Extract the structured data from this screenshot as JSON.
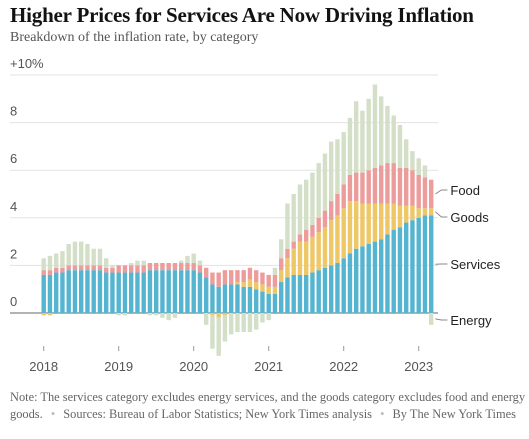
{
  "header": {
    "title": "Higher Prices for Services Are Now Driving Inflation",
    "subtitle": "Breakdown of the inflation rate, by category"
  },
  "chart_data": {
    "type": "bar",
    "stacked": true,
    "x_start": "2018-01",
    "x": [
      "Jan 2018",
      "Feb 2018",
      "Mar 2018",
      "Apr 2018",
      "May 2018",
      "Jun 2018",
      "Jul 2018",
      "Aug 2018",
      "Sep 2018",
      "Oct 2018",
      "Nov 2018",
      "Dec 2018",
      "Jan 2019",
      "Feb 2019",
      "Mar 2019",
      "Apr 2019",
      "May 2019",
      "Jun 2019",
      "Jul 2019",
      "Aug 2019",
      "Sep 2019",
      "Oct 2019",
      "Nov 2019",
      "Dec 2019",
      "Jan 2020",
      "Feb 2020",
      "Mar 2020",
      "Apr 2020",
      "May 2020",
      "Jun 2020",
      "Jul 2020",
      "Aug 2020",
      "Sep 2020",
      "Oct 2020",
      "Nov 2020",
      "Dec 2020",
      "Jan 2021",
      "Feb 2021",
      "Mar 2021",
      "Apr 2021",
      "May 2021",
      "Jun 2021",
      "Jul 2021",
      "Aug 2021",
      "Sep 2021",
      "Oct 2021",
      "Nov 2021",
      "Dec 2021",
      "Jan 2022",
      "Feb 2022",
      "Mar 2022",
      "Apr 2022",
      "May 2022",
      "Jun 2022",
      "Jul 2022",
      "Aug 2022",
      "Sep 2022",
      "Oct 2022",
      "Nov 2022",
      "Dec 2022",
      "Jan 2023",
      "Feb 2023",
      "Mar 2023"
    ],
    "series": [
      {
        "name": "Services",
        "color": "#55b4d0",
        "values": [
          1.6,
          1.6,
          1.7,
          1.7,
          1.8,
          1.8,
          1.8,
          1.8,
          1.8,
          1.8,
          1.7,
          1.7,
          1.7,
          1.7,
          1.7,
          1.7,
          1.7,
          1.8,
          1.8,
          1.8,
          1.8,
          1.8,
          1.8,
          1.8,
          1.8,
          1.7,
          1.5,
          1.2,
          1.1,
          1.2,
          1.2,
          1.2,
          1.1,
          1.1,
          1.0,
          0.9,
          0.8,
          0.8,
          1.3,
          1.5,
          1.6,
          1.6,
          1.6,
          1.7,
          1.8,
          1.9,
          2.0,
          2.1,
          2.3,
          2.5,
          2.7,
          2.8,
          2.9,
          3.0,
          3.1,
          3.3,
          3.5,
          3.6,
          3.8,
          3.9,
          4.0,
          4.1,
          4.1
        ]
      },
      {
        "name": "Goods",
        "color": "#eec767",
        "values": [
          -0.1,
          -0.1,
          0.0,
          0.0,
          0.0,
          0.0,
          0.0,
          0.0,
          0.0,
          0.0,
          0.0,
          0.0,
          0.0,
          0.0,
          0.0,
          0.0,
          0.0,
          0.0,
          0.0,
          0.0,
          0.0,
          0.0,
          0.0,
          0.0,
          0.0,
          0.0,
          0.0,
          -0.1,
          -0.2,
          -0.1,
          0.0,
          0.1,
          0.2,
          0.3,
          0.3,
          0.3,
          0.3,
          0.3,
          0.5,
          0.8,
          1.1,
          1.4,
          1.4,
          1.5,
          1.6,
          1.7,
          1.9,
          2.0,
          2.1,
          2.2,
          2.0,
          1.8,
          1.7,
          1.6,
          1.5,
          1.3,
          1.1,
          0.9,
          0.7,
          0.6,
          0.4,
          0.3,
          0.3
        ]
      },
      {
        "name": "Food",
        "color": "#ec9d9b",
        "values": [
          0.2,
          0.2,
          0.2,
          0.2,
          0.2,
          0.2,
          0.2,
          0.2,
          0.2,
          0.2,
          0.2,
          0.2,
          0.3,
          0.3,
          0.3,
          0.3,
          0.3,
          0.3,
          0.3,
          0.3,
          0.3,
          0.3,
          0.3,
          0.3,
          0.3,
          0.3,
          0.4,
          0.5,
          0.6,
          0.6,
          0.6,
          0.5,
          0.5,
          0.5,
          0.5,
          0.5,
          0.5,
          0.5,
          0.5,
          0.4,
          0.3,
          0.3,
          0.5,
          0.5,
          0.6,
          0.7,
          0.8,
          0.9,
          1.0,
          1.1,
          1.2,
          1.3,
          1.4,
          1.5,
          1.6,
          1.7,
          1.7,
          1.6,
          1.6,
          1.5,
          1.4,
          1.3,
          1.2
        ]
      },
      {
        "name": "Energy",
        "color": "#d4dfc8",
        "values": [
          0.5,
          0.6,
          0.6,
          0.7,
          0.9,
          1.0,
          1.0,
          0.9,
          0.7,
          0.7,
          0.4,
          0.1,
          -0.1,
          -0.1,
          0.1,
          0.2,
          0.2,
          -0.1,
          -0.1,
          -0.2,
          -0.3,
          -0.2,
          0.1,
          0.3,
          0.4,
          0.2,
          -0.5,
          -1.4,
          -1.6,
          -1.1,
          -0.9,
          -0.8,
          -0.8,
          -0.8,
          -0.7,
          -0.4,
          -0.3,
          0.3,
          0.8,
          1.9,
          2.0,
          2.1,
          2.1,
          2.2,
          2.3,
          2.4,
          2.5,
          2.3,
          2.2,
          2.4,
          3.0,
          2.6,
          3.0,
          3.5,
          2.9,
          2.4,
          2.0,
          1.8,
          1.2,
          0.8,
          0.7,
          0.5,
          -0.5
        ]
      }
    ],
    "ylim": [
      -2,
      10
    ],
    "y_ticks": [
      {
        "value": 10,
        "label": "+10%"
      },
      {
        "value": 8,
        "label": "8"
      },
      {
        "value": 6,
        "label": "6"
      },
      {
        "value": 4,
        "label": "4"
      },
      {
        "value": 2,
        "label": "2"
      },
      {
        "value": 0,
        "label": "0"
      }
    ],
    "x_ticks": [
      {
        "index": 0,
        "label": "2018"
      },
      {
        "index": 12,
        "label": "2019"
      },
      {
        "index": 24,
        "label": "2020"
      },
      {
        "index": 36,
        "label": "2021"
      },
      {
        "index": 48,
        "label": "2022"
      },
      {
        "index": 60,
        "label": "2023"
      }
    ],
    "series_labels": [
      "Food",
      "Goods",
      "Services",
      "Energy"
    ],
    "legend": "right, direct labels",
    "grid": true
  },
  "footer": {
    "note": "Note: The services category excludes energy services, and the goods category excludes food and energy goods.",
    "sources": "Sources: Bureau of Labor Statistics; New York Times analysis",
    "byline": "By The New York Times"
  }
}
